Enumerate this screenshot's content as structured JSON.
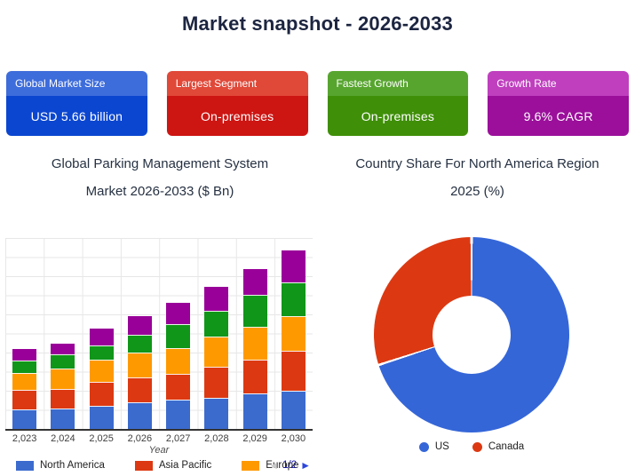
{
  "page": {
    "title": "Market snapshot - 2026-2033"
  },
  "cards": [
    {
      "label": "Global Market Size",
      "value": "USD 5.66 billion",
      "header_color": "#3d6cdb",
      "body_color": "#0b46d0"
    },
    {
      "label": "Largest Segment",
      "value": "On-premises",
      "header_color": "#e04838",
      "body_color": "#cd1512"
    },
    {
      "label": "Fastest Growth",
      "value": "On-premises",
      "header_color": "#57a52f",
      "body_color": "#3f8f08"
    },
    {
      "label": "Growth Rate",
      "value": "9.6% CAGR",
      "header_color": "#bf3fbf",
      "body_color": "#9b0f9b"
    }
  ],
  "chart_data": [
    {
      "type": "bar",
      "stacked": true,
      "title": "Global Parking Management System Market 2026-2033 ($ Bn)",
      "title_lines": [
        "Global Parking Management System",
        "Market 2026-2033 ($ Bn)"
      ],
      "xlabel": "Year",
      "ylabel": "",
      "unit": "$ Bn",
      "categories": [
        "2,023",
        "2,024",
        "2,025",
        "2,026",
        "2,027",
        "2,028",
        "2,029",
        "2,030"
      ],
      "years": [
        2023,
        2024,
        2025,
        2026,
        2027,
        2028,
        2029,
        2030
      ],
      "ylim": [
        0,
        10.75
      ],
      "grid": true,
      "values_estimated": true,
      "series": [
        {
          "name": "North America",
          "color": "#3c6bce",
          "in_legend": true,
          "values": [
            1.1,
            1.17,
            1.32,
            1.5,
            1.63,
            1.75,
            2.0,
            2.17
          ]
        },
        {
          "name": "Asia Pacific",
          "color": "#dc3912",
          "in_legend": true,
          "values": [
            1.08,
            1.08,
            1.35,
            1.41,
            1.47,
            1.75,
            1.92,
            2.21
          ]
        },
        {
          "name": "Europe",
          "color": "#ff9900",
          "in_legend": true,
          "values": [
            0.95,
            1.15,
            1.25,
            1.38,
            1.45,
            1.72,
            1.83,
            1.97
          ]
        },
        {
          "name": "",
          "color": "#109618",
          "in_legend": false,
          "values": [
            0.72,
            0.8,
            0.8,
            1.0,
            1.33,
            1.41,
            1.8,
            1.9
          ]
        },
        {
          "name": "",
          "color": "#990099",
          "in_legend": false,
          "values": [
            0.65,
            0.6,
            0.94,
            1.05,
            1.21,
            1.38,
            1.45,
            1.8
          ]
        }
      ],
      "totals": [
        4.5,
        4.8,
        5.66,
        6.34,
        7.09,
        8.01,
        9.0,
        10.05
      ],
      "legend_position": "bottom",
      "legend_pagination": {
        "label": "1/2",
        "prev_icon": "left-triangle",
        "next_icon": "right-triangle",
        "prev_enabled": false,
        "next_enabled": true
      }
    },
    {
      "type": "pie",
      "donut": true,
      "title": "Country Share For North America Region 2025 (%)",
      "title_lines": [
        "Country Share For North America Region",
        "2025 (%)"
      ],
      "values_estimated": true,
      "slices": [
        {
          "label": "US",
          "value": 70,
          "color": "#3566d8"
        },
        {
          "label": "Canada",
          "value": 30,
          "color": "#dc3912"
        }
      ],
      "legend_position": "bottom"
    }
  ]
}
